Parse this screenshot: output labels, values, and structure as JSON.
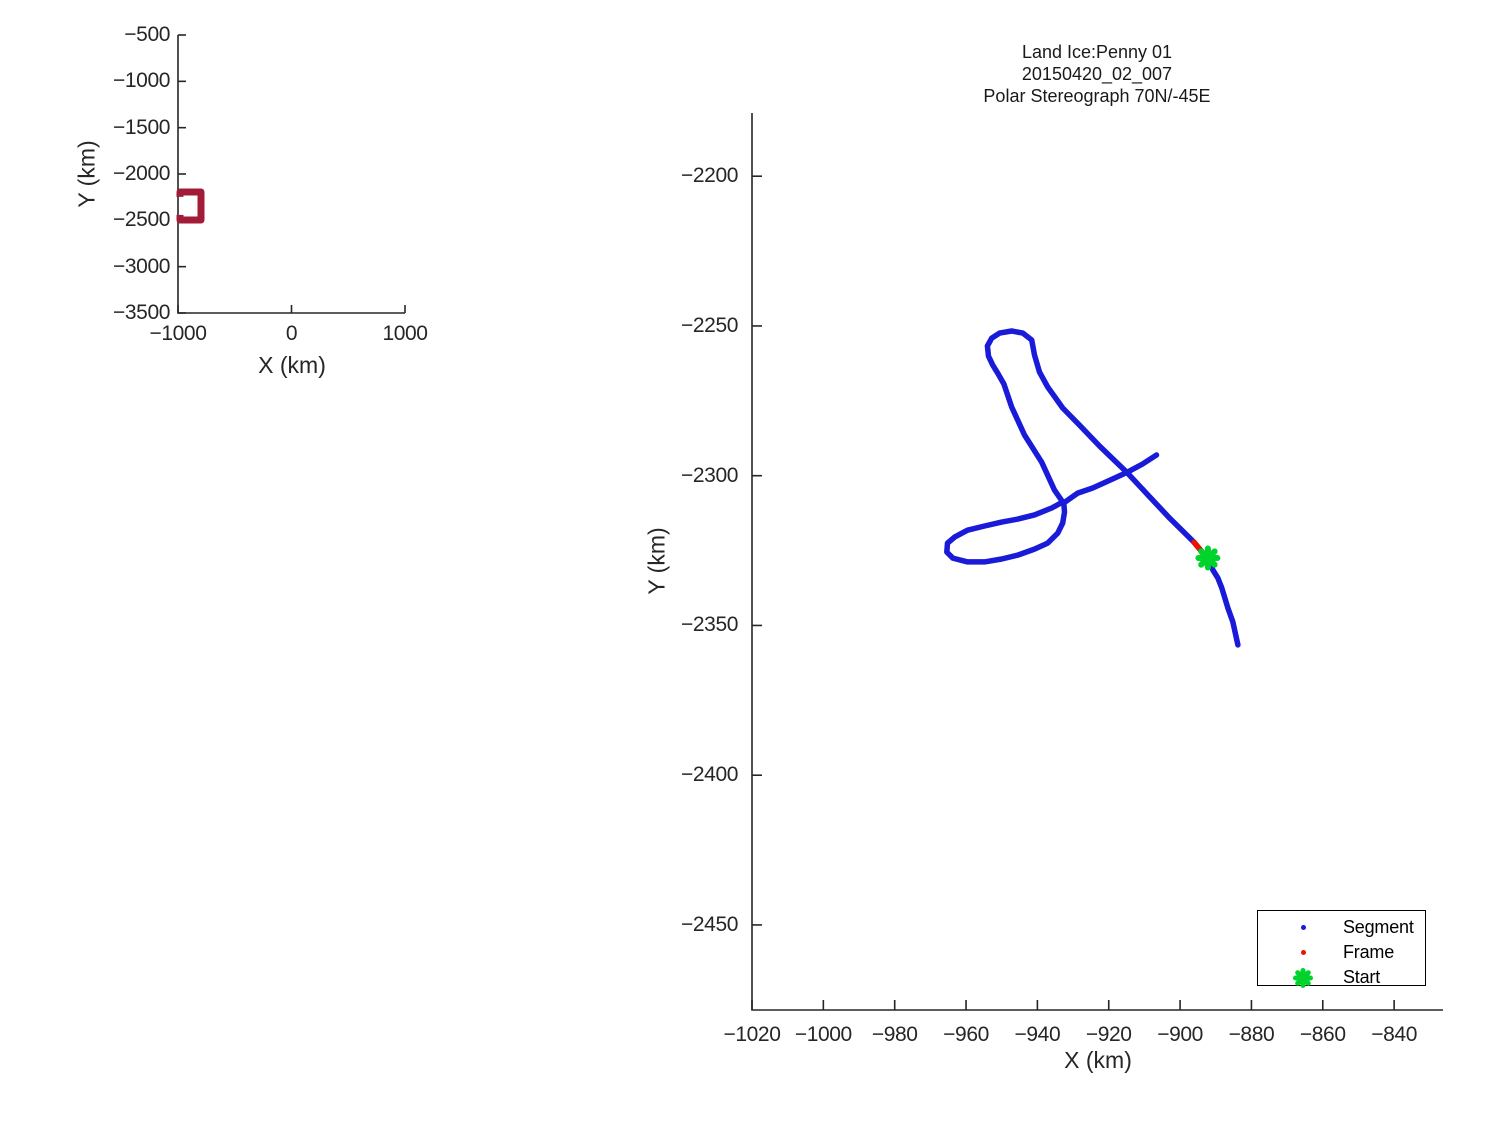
{
  "title": {
    "lines": [
      "Land Ice:Penny 01",
      "20150420_02_007",
      "Polar Stereograph 70N/-45E"
    ]
  },
  "legend": {
    "items": [
      {
        "label": "Segment",
        "marker": "dot",
        "color": "#1A1AD9"
      },
      {
        "label": "Frame",
        "marker": "dot",
        "color": "#EE1100"
      },
      {
        "label": "Start",
        "marker": "asterisk",
        "color": "#00D42C"
      }
    ]
  },
  "colors": {
    "axis": "#262626",
    "segment": "#1A1AD9",
    "frame": "#EE1100",
    "start": "#00D42C",
    "overview_track": "#A21C38",
    "background": "#FFFFFF"
  },
  "chart_data": [
    {
      "id": "overview",
      "type": "line",
      "title": "",
      "xlabel": "X (km)",
      "ylabel": "Y (km)",
      "xlim": [
        -1000,
        1000
      ],
      "ylim": [
        -3500,
        -500
      ],
      "xticks": [
        -1000,
        0,
        1000
      ],
      "yticks": [
        -500,
        -1000,
        -1500,
        -2000,
        -2500,
        -3000,
        -3500
      ],
      "grid": false,
      "series": [
        {
          "name": "flight-track-extent",
          "color": "#A21C38",
          "points": [
            [
              -982,
              -2247
            ],
            [
              -982,
              -2194
            ],
            [
              -797,
              -2194
            ],
            [
              -797,
              -2496
            ],
            [
              -982,
              -2496
            ],
            [
              -982,
              -2441
            ]
          ]
        }
      ]
    },
    {
      "id": "main",
      "type": "line",
      "title_lines": [
        "Land Ice:Penny 01",
        "20150420_02_007",
        "Polar Stereograph 70N/-45E"
      ],
      "xlabel": "X (km)",
      "ylabel": "Y (km)",
      "xlim": [
        -1020,
        -826.3
      ],
      "ylim": [
        -2478.4,
        -2178.9
      ],
      "xticks": [
        -1020,
        -1000,
        -980,
        -960,
        -940,
        -920,
        -900,
        -880,
        -860,
        -840
      ],
      "yticks": [
        -2200,
        -2250,
        -2300,
        -2350,
        -2400,
        -2450
      ],
      "grid": false,
      "legend_position": "bottom-right",
      "series": [
        {
          "name": "Segment",
          "color": "#1A1AD9",
          "points": [
            [
              -883.8,
              -2356.5
            ],
            [
              -885.2,
              -2348.9
            ],
            [
              -886.6,
              -2344.2
            ],
            [
              -888.3,
              -2337.5
            ],
            [
              -889.4,
              -2334.2
            ],
            [
              -890.8,
              -2331.5
            ],
            [
              -892.2,
              -2327.5
            ],
            [
              -893.3,
              -2326.2
            ],
            [
              -894.7,
              -2324.2
            ],
            [
              -896.1,
              -2322.2
            ],
            [
              -902.9,
              -2314.2
            ],
            [
              -908.5,
              -2307.1
            ],
            [
              -915.0,
              -2298.8
            ],
            [
              -922.6,
              -2290.1
            ],
            [
              -928.2,
              -2283.1
            ],
            [
              -932.9,
              -2277.4
            ],
            [
              -937.1,
              -2270.4
            ],
            [
              -939.4,
              -2265.4
            ],
            [
              -940.8,
              -2259.7
            ],
            [
              -941.6,
              -2254.7
            ],
            [
              -944.1,
              -2252.4
            ],
            [
              -947.2,
              -2251.7
            ],
            [
              -950.6,
              -2252.4
            ],
            [
              -952.8,
              -2254.1
            ],
            [
              -954.0,
              -2256.7
            ],
            [
              -953.7,
              -2260.1
            ],
            [
              -952.5,
              -2263.1
            ],
            [
              -951.1,
              -2265.8
            ],
            [
              -949.4,
              -2269.4
            ],
            [
              -947.2,
              -2277.1
            ],
            [
              -943.6,
              -2286.4
            ],
            [
              -938.8,
              -2295.5
            ],
            [
              -935.2,
              -2304.8
            ],
            [
              -932.9,
              -2308.8
            ],
            [
              -936.0,
              -2310.8
            ],
            [
              -940.8,
              -2313.1
            ],
            [
              -945.5,
              -2314.5
            ],
            [
              -950.0,
              -2315.5
            ],
            [
              -954.8,
              -2316.8
            ],
            [
              -959.6,
              -2318.2
            ],
            [
              -963.2,
              -2320.5
            ],
            [
              -965.2,
              -2322.5
            ],
            [
              -965.4,
              -2325.5
            ],
            [
              -963.7,
              -2327.5
            ],
            [
              -959.6,
              -2328.8
            ],
            [
              -954.8,
              -2328.8
            ],
            [
              -950.0,
              -2327.8
            ],
            [
              -945.5,
              -2326.5
            ],
            [
              -940.8,
              -2324.5
            ],
            [
              -937.1,
              -2322.5
            ],
            [
              -934.3,
              -2319.2
            ],
            [
              -932.9,
              -2315.8
            ],
            [
              -932.4,
              -2312.2
            ],
            [
              -932.6,
              -2309.1
            ],
            [
              -928.7,
              -2305.8
            ],
            [
              -924.5,
              -2304.1
            ],
            [
              -919.7,
              -2301.5
            ],
            [
              -914.7,
              -2298.8
            ],
            [
              -910.5,
              -2296.1
            ],
            [
              -906.6,
              -2293.1
            ]
          ]
        },
        {
          "name": "Frame",
          "color": "#EE1100",
          "points": [
            [
              -896.1,
              -2322.2
            ],
            [
              -894.7,
              -2324.2
            ],
            [
              -893.3,
              -2326.2
            ]
          ]
        }
      ],
      "start_marker": {
        "name": "Start",
        "color": "#00D42C",
        "point": [
          -892.2,
          -2327.5
        ]
      }
    }
  ]
}
